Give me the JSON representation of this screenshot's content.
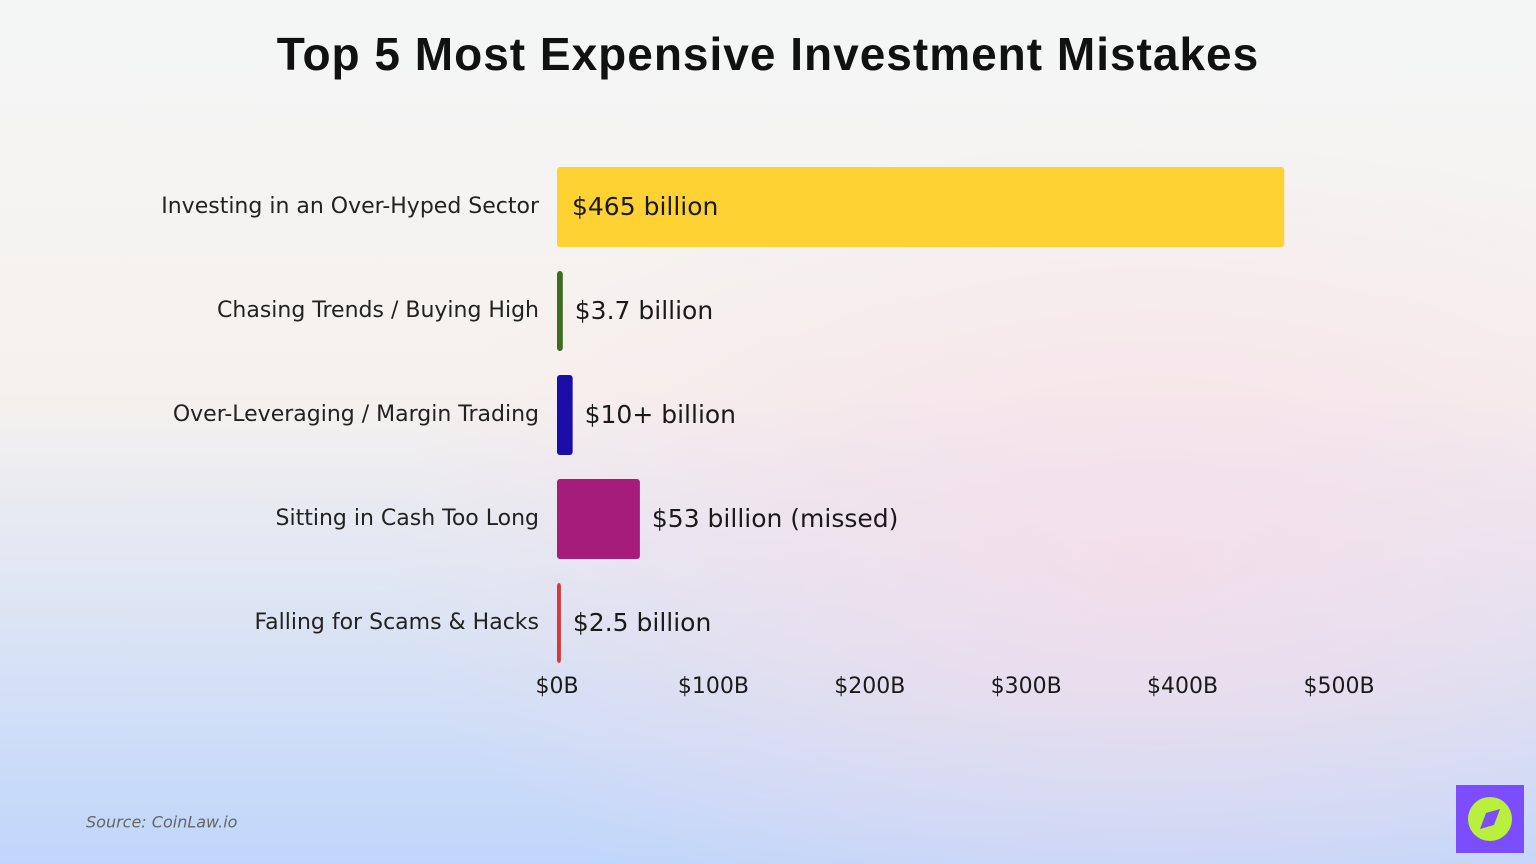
{
  "chart_data": {
    "type": "hbar",
    "title": "Top 5 Most Expensive Investment Mistakes",
    "categories": [
      "Investing in an Over-Hyped Sector",
      "Chasing Trends / Buying High",
      "Over-Leveraging / Margin Trading",
      "Sitting in Cash Too Long",
      "Falling for Scams & Hacks"
    ],
    "values": [
      465,
      3.7,
      10,
      53,
      2.5
    ],
    "value_labels": [
      "$465 billion",
      "$3.7 billion",
      "$10+ billion",
      "$53 billion (missed)",
      "$2.5 billion"
    ],
    "colors": [
      "#ffd233",
      "#3d6b1f",
      "#1c0ca8",
      "#a51c7b",
      "#d8383a"
    ],
    "xlim": [
      0,
      500
    ],
    "xticks": [
      {
        "value": 0,
        "label": "$0B"
      },
      {
        "value": 100,
        "label": "$100B"
      },
      {
        "value": 200,
        "label": "$200B"
      },
      {
        "value": 300,
        "label": "$300B"
      },
      {
        "value": 400,
        "label": "$400B"
      },
      {
        "value": 500,
        "label": "$500B"
      }
    ],
    "source": "Source: CoinLaw.io"
  }
}
